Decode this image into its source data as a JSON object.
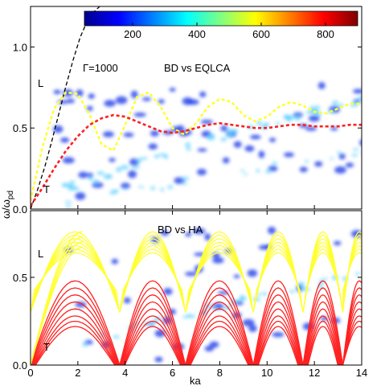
{
  "colors": {
    "colormap": [
      "#00008f",
      "#0000ff",
      "#0080ff",
      "#00ffff",
      "#80ff80",
      "#ffff00",
      "#ff8000",
      "#ff0000",
      "#800000"
    ],
    "eqlca_L": "#ffff33",
    "eqlca_T": "#ff2020",
    "ha_L": "#ffff33",
    "ha_T": "#ff2020",
    "light_line": "#000000",
    "bd_fill": "#1f3fe8",
    "bd_core": "#5fd0ff"
  },
  "chart_data": [
    {
      "type": "heatmap",
      "panel": "top",
      "xlabel": "",
      "ylabel": "ω/ω_pd",
      "ylabel_main": "ω/ω",
      "ylabel_sub": "pd",
      "xlim": [
        0,
        14
      ],
      "ylim": [
        0,
        1.25
      ],
      "yticks": [
        0.0,
        0.5,
        1.0
      ],
      "ytick_labels": [
        "0.0",
        "0.5",
        "1.0"
      ],
      "annotations": {
        "gamma": "Γ=1000",
        "comparison": "BD vs EQLCA",
        "L": "L",
        "T": "T"
      },
      "colorbar": {
        "range": [
          50,
          900
        ],
        "ticks": [
          200,
          400,
          600,
          800
        ],
        "tick_labels": [
          "200",
          "400",
          "600",
          "800"
        ]
      },
      "series": [
        {
          "style": "dashed",
          "color_key": "light_line",
          "x": [
            0,
            0.3,
            0.6,
            0.9,
            1.2,
            1.5,
            1.8,
            2.1,
            2.4,
            2.7,
            3.0
          ],
          "y": [
            0,
            0.12,
            0.26,
            0.42,
            0.59,
            0.76,
            0.92,
            1.06,
            1.16,
            1.22,
            1.26
          ]
        },
        {
          "style": "dashed",
          "color_key": "eqlca_L",
          "x": [
            0,
            0.5,
            1.0,
            1.5,
            2.0,
            2.5,
            3.0,
            3.5,
            4.0,
            4.5,
            5.0,
            5.5,
            6.0,
            6.5,
            7.0,
            7.5,
            8.0,
            8.5,
            9.0,
            9.5,
            10.0,
            10.5,
            11.0,
            11.5,
            12.0,
            12.5,
            13.0,
            13.5,
            14.0
          ],
          "y": [
            0.05,
            0.38,
            0.62,
            0.72,
            0.71,
            0.58,
            0.4,
            0.36,
            0.52,
            0.69,
            0.72,
            0.63,
            0.5,
            0.46,
            0.53,
            0.63,
            0.68,
            0.66,
            0.58,
            0.54,
            0.57,
            0.63,
            0.66,
            0.64,
            0.6,
            0.59,
            0.62,
            0.65,
            0.65
          ]
        },
        {
          "style": "dashed",
          "color_key": "eqlca_T",
          "x": [
            0,
            0.5,
            1.0,
            1.5,
            2.0,
            2.5,
            3.0,
            3.5,
            4.0,
            4.5,
            5.0,
            5.5,
            6.0,
            6.5,
            7.0,
            7.5,
            8.0,
            8.5,
            9.0,
            9.5,
            10.0,
            10.5,
            11.0,
            11.5,
            12.0,
            12.5,
            13.0,
            13.5,
            14.0
          ],
          "y": [
            0.02,
            0.13,
            0.25,
            0.36,
            0.45,
            0.52,
            0.56,
            0.58,
            0.57,
            0.54,
            0.51,
            0.48,
            0.47,
            0.48,
            0.5,
            0.52,
            0.53,
            0.52,
            0.51,
            0.5,
            0.5,
            0.51,
            0.52,
            0.52,
            0.51,
            0.51,
            0.51,
            0.52,
            0.52
          ]
        }
      ]
    },
    {
      "type": "heatmap",
      "panel": "bottom",
      "xlabel": "ka",
      "ylabel": "",
      "xlim": [
        0,
        14
      ],
      "ylim": [
        0,
        0.88
      ],
      "xticks": [
        0,
        2,
        4,
        6,
        8,
        10,
        12,
        14
      ],
      "xtick_labels": [
        "0",
        "2",
        "4",
        "6",
        "8",
        "10",
        "12",
        "14"
      ],
      "yticks": [
        0.0,
        0.5
      ],
      "ytick_labels": [
        "0.0",
        "0.5"
      ],
      "annotations": {
        "comparison": "BD vs HA",
        "L": "L",
        "T": "T"
      },
      "ha_branches": {
        "shell_zeros": [
          0,
          3.77,
          6.55,
          9.42,
          11.52,
          13.2
        ],
        "L_amplitudes": [
          0.76,
          0.74,
          0.72,
          0.7,
          0.68,
          0.66,
          0.64
        ],
        "T_amplitudes": [
          0.48,
          0.44,
          0.4,
          0.36,
          0.32,
          0.28,
          0.25,
          0.22
        ]
      }
    }
  ]
}
